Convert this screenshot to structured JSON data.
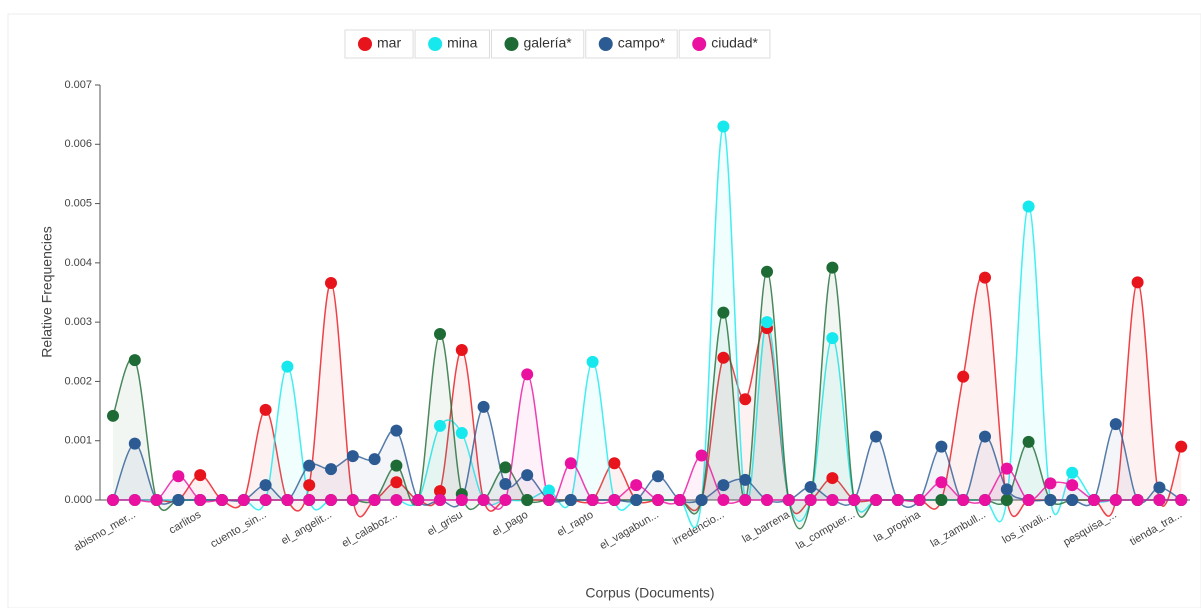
{
  "chart_data": {
    "type": "line",
    "ylabel": "Relative Frequencies",
    "xlabel": "Corpus (Documents)",
    "categories": [
      null,
      "abismo_mer...",
      null,
      null,
      "carlitos",
      null,
      null,
      "cuento_sin...",
      null,
      null,
      "el_angelit...",
      null,
      null,
      "el_calaboz...",
      null,
      null,
      "el_grisu",
      null,
      null,
      "el_pago",
      null,
      null,
      "el_rapto",
      null,
      null,
      "el_vagabun...",
      null,
      null,
      "irredencio...",
      null,
      null,
      "la_barrena",
      null,
      null,
      "la_compuer...",
      null,
      null,
      "la_propina",
      null,
      null,
      "la_zambull...",
      null,
      null,
      "los_invali...",
      null,
      null,
      "pesquisa_...",
      null,
      null,
      "tienda_tra..."
    ],
    "series": [
      {
        "name": "mar",
        "color": "#e8141c",
        "values": [
          0,
          0,
          0,
          0,
          0.00042,
          0,
          0,
          0.00152,
          0,
          0.00025,
          0.00366,
          0,
          0,
          0.0003,
          0,
          0.00015,
          0.00253,
          0,
          0,
          0,
          0,
          0,
          0,
          0.00062,
          0,
          0,
          0,
          0,
          0.0024,
          0.0017,
          0.0029,
          0,
          0,
          0.00037,
          0,
          0,
          0,
          0,
          0,
          0.00208,
          0.00375,
          0,
          0,
          0,
          0,
          0,
          0,
          0.00367,
          0,
          0.0009
        ]
      },
      {
        "name": "mina",
        "color": "#17e8ee",
        "values": [
          0,
          0,
          0,
          0,
          0,
          0,
          0,
          0,
          0.00225,
          0,
          0,
          0,
          0,
          0,
          0,
          0.00125,
          0.00113,
          0,
          0,
          0,
          0.00016,
          0,
          0.00233,
          0,
          0,
          0,
          0,
          0,
          0.0063,
          0,
          0.003,
          0,
          0,
          0.00273,
          0,
          0,
          0,
          0,
          0,
          0,
          0,
          0,
          0.00495,
          0,
          0.00046,
          0,
          0,
          0,
          0,
          0
        ]
      },
      {
        "name": "galería*",
        "color": "#1e6b35",
        "values": [
          0.00142,
          0.00236,
          0,
          0,
          0,
          0,
          0,
          0,
          0,
          0,
          0,
          0,
          0,
          0.00058,
          0,
          0.0028,
          0.0001,
          0,
          0.00055,
          0,
          0,
          0,
          0,
          0,
          0,
          0,
          0,
          0,
          0.00316,
          0,
          0.00385,
          0,
          0,
          0.00392,
          0,
          0,
          0,
          0,
          0,
          0,
          0,
          0,
          0.00098,
          0,
          0,
          0,
          0,
          0,
          0,
          0
        ]
      },
      {
        "name": "campo*",
        "color": "#2c5b94",
        "values": [
          0,
          0.00095,
          0,
          0,
          0,
          0,
          0,
          0.00025,
          0,
          0.00058,
          0.00052,
          0.00074,
          0.00069,
          0.00117,
          0,
          0,
          0,
          0.00157,
          0.00027,
          0.00042,
          0,
          0,
          0,
          0,
          0,
          0.0004,
          0,
          0,
          0.00025,
          0.00034,
          0,
          0,
          0.00022,
          0,
          0,
          0.00107,
          0,
          0,
          0.0009,
          0,
          0.00107,
          0.00018,
          0,
          0,
          0,
          0,
          0.00128,
          0,
          0.00021,
          0
        ]
      },
      {
        "name": "ciudad*",
        "color": "#ea10a0",
        "values": [
          0,
          0,
          0,
          0.0004,
          0,
          0,
          0,
          0,
          0,
          0,
          0,
          0,
          0,
          0,
          0,
          0,
          0,
          0,
          0,
          0.00212,
          0,
          0.00062,
          0,
          0,
          0.00025,
          0,
          0,
          0.00075,
          0,
          0,
          0,
          0,
          0,
          0,
          0,
          0,
          0,
          0,
          0.0003,
          0,
          0,
          0.00053,
          0,
          0.00028,
          0.00025,
          0,
          0,
          0,
          0,
          0
        ]
      }
    ],
    "ylim": [
      0,
      0.007
    ],
    "yticks": [
      {
        "value": 0,
        "label": "0.000"
      },
      0.001,
      0.002,
      0.003,
      0.004,
      0.005,
      0.006,
      0.007
    ],
    "legend": "top"
  }
}
